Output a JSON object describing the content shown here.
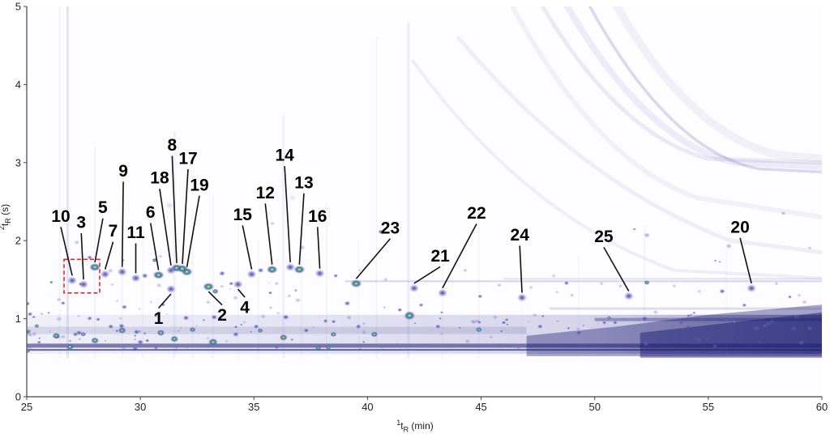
{
  "chart_data": {
    "type": "heatmap",
    "title": "",
    "xlabel": {
      "sup": "1",
      "base": "t",
      "sub": "R",
      "unit": " (min)"
    },
    "ylabel": {
      "sup": "2",
      "base": "t",
      "sub": "R",
      "unit": " (s)"
    },
    "xlim": [
      25,
      60
    ],
    "ylim": [
      0,
      5
    ],
    "xticks": [
      25,
      30,
      35,
      40,
      45,
      50,
      55,
      60
    ],
    "yticks": [
      0,
      1,
      2,
      3,
      4,
      5
    ],
    "grid": false,
    "colors": {
      "axis": "#444444",
      "tick_label": "#222222",
      "peak_label": "#000000",
      "roi": "#e8262a",
      "spot_hot_core": "#fbfb6a",
      "spot_hot_mid": "#58c24a",
      "spot_blue": "#2b4bb8",
      "spot_purple": "#7a72c0",
      "band": "#1d1d72",
      "bleed": "#8a80c8",
      "background": "#fdfdff"
    },
    "peaks": [
      {
        "n": "1",
        "t1": 31.35,
        "t2": 1.38,
        "lx": 30.8,
        "ly": 1.0,
        "hot": false
      },
      {
        "n": "2",
        "t1": 33.0,
        "t2": 1.41,
        "lx": 33.6,
        "ly": 1.04,
        "hot": true
      },
      {
        "n": "3",
        "t1": 27.5,
        "t2": 1.44,
        "lx": 27.4,
        "ly": 2.23,
        "hot": false
      },
      {
        "n": "4",
        "t1": 34.3,
        "t2": 1.44,
        "lx": 34.6,
        "ly": 1.14,
        "hot": false
      },
      {
        "n": "5",
        "t1": 28.0,
        "t2": 1.66,
        "lx": 28.35,
        "ly": 2.42,
        "hot": true
      },
      {
        "n": "6",
        "t1": 30.8,
        "t2": 1.56,
        "lx": 30.45,
        "ly": 2.36,
        "hot": true
      },
      {
        "n": "7",
        "t1": 28.45,
        "t2": 1.57,
        "lx": 28.8,
        "ly": 2.12,
        "hot": false
      },
      {
        "n": "8",
        "t1": 31.6,
        "t2": 1.65,
        "lx": 31.4,
        "ly": 3.22,
        "hot": true
      },
      {
        "n": "9",
        "t1": 29.2,
        "t2": 1.6,
        "lx": 29.25,
        "ly": 2.89,
        "hot": false
      },
      {
        "n": "10",
        "t1": 27.0,
        "t2": 1.49,
        "lx": 26.5,
        "ly": 2.31,
        "hot": false
      },
      {
        "n": "11",
        "t1": 29.8,
        "t2": 1.52,
        "lx": 29.8,
        "ly": 2.1,
        "hot": false
      },
      {
        "n": "12",
        "t1": 35.8,
        "t2": 1.63,
        "lx": 35.5,
        "ly": 2.61,
        "hot": true
      },
      {
        "n": "13",
        "t1": 37.0,
        "t2": 1.63,
        "lx": 37.2,
        "ly": 2.74,
        "hot": true
      },
      {
        "n": "14",
        "t1": 36.6,
        "t2": 1.66,
        "lx": 36.35,
        "ly": 3.09,
        "hot": false
      },
      {
        "n": "15",
        "t1": 34.9,
        "t2": 1.57,
        "lx": 34.5,
        "ly": 2.33,
        "hot": false
      },
      {
        "n": "16",
        "t1": 37.9,
        "t2": 1.58,
        "lx": 37.8,
        "ly": 2.31,
        "hot": false
      },
      {
        "n": "17",
        "t1": 31.85,
        "t2": 1.64,
        "lx": 32.1,
        "ly": 3.05,
        "hot": true
      },
      {
        "n": "18",
        "t1": 31.35,
        "t2": 1.62,
        "lx": 30.85,
        "ly": 2.8,
        "hot": false
      },
      {
        "n": "19",
        "t1": 32.05,
        "t2": 1.6,
        "lx": 32.6,
        "ly": 2.71,
        "hot": true
      },
      {
        "n": "20",
        "t1": 56.9,
        "t2": 1.39,
        "lx": 56.4,
        "ly": 2.17,
        "hot": false
      },
      {
        "n": "21",
        "t1": 42.05,
        "t2": 1.39,
        "lx": 43.2,
        "ly": 1.8,
        "hot": false
      },
      {
        "n": "22",
        "t1": 43.3,
        "t2": 1.33,
        "lx": 44.8,
        "ly": 2.35,
        "hot": false
      },
      {
        "n": "23",
        "t1": 39.5,
        "t2": 1.45,
        "lx": 41.0,
        "ly": 2.16,
        "hot": true
      },
      {
        "n": "24",
        "t1": 46.8,
        "t2": 1.27,
        "lx": 46.7,
        "ly": 2.07,
        "hot": false
      },
      {
        "n": "25",
        "t1": 51.5,
        "t2": 1.29,
        "lx": 50.4,
        "ly": 2.05,
        "hot": false
      }
    ],
    "roi_box": {
      "t1": 26.64,
      "t2": 28.21,
      "s1": 1.33,
      "s2": 1.76
    },
    "background": {
      "curves": [
        {
          "p": [
            47.5,
            5.1,
            51.0,
            3.35,
            55.0,
            3.05
          ],
          "ext": [
            60,
            3.0
          ],
          "w": 5,
          "o": 0.16
        },
        {
          "p": [
            48.6,
            5.1,
            52.2,
            3.25,
            56.2,
            3.0
          ],
          "ext": [
            60,
            2.95
          ],
          "w": 8,
          "o": 0.14
        },
        {
          "p": [
            49.6,
            5.1,
            53.2,
            3.15,
            57.2,
            2.92
          ],
          "ext": [
            60,
            2.88
          ],
          "w": 3.5,
          "o": 0.3
        },
        {
          "p": [
            50.8,
            5.1,
            54.0,
            3.4,
            58.0,
            3.1
          ],
          "ext": [
            60,
            3.05
          ],
          "w": 10,
          "o": 0.1
        },
        {
          "p": [
            46.2,
            5.1,
            50.0,
            3.0,
            54.5,
            2.55
          ],
          "ext": [
            60,
            2.3
          ],
          "w": 6,
          "o": 0.1
        },
        {
          "p": [
            44.0,
            4.6,
            49.5,
            2.7,
            56.0,
            2.0
          ],
          "ext": [
            60,
            1.85
          ],
          "w": 5,
          "o": 0.13
        },
        {
          "p": [
            42.0,
            4.3,
            47.0,
            2.3,
            53.5,
            1.62
          ],
          "ext": [
            60,
            1.52
          ],
          "w": 4,
          "o": 0.12
        }
      ],
      "hlines": [
        {
          "x0": 39,
          "x1": 60,
          "s": 1.48,
          "w": 2,
          "o": 0.4
        },
        {
          "x0": 46,
          "x1": 60,
          "s": 1.51,
          "w": 2,
          "o": 0.28
        },
        {
          "x0": 48,
          "x1": 60,
          "s": 1.13,
          "w": 3,
          "o": 0.3
        },
        {
          "x0": 50,
          "x1": 60,
          "s": 0.99,
          "w": 4,
          "o": 0.35
        },
        {
          "x0": 25,
          "x1": 60,
          "s": 0.655,
          "w": 5,
          "o": 0.55
        },
        {
          "x0": 25,
          "x1": 60,
          "s": 0.6,
          "w": 2,
          "o": 0.65
        },
        {
          "x0": 25,
          "x1": 47,
          "s": 0.85,
          "w": 9,
          "o": 0.12
        }
      ],
      "right_mass": [
        {
          "pts": [
            [
              47,
              0.52
            ],
            [
              60,
              0.52
            ],
            [
              60,
              1.18
            ],
            [
              55,
              1.05
            ],
            [
              51,
              0.9
            ],
            [
              47,
              0.78
            ]
          ],
          "o": 0.4
        },
        {
          "pts": [
            [
              52,
              0.5
            ],
            [
              60,
              0.5
            ],
            [
              60,
              1.08
            ],
            [
              56,
              0.95
            ],
            [
              52,
              0.82
            ]
          ],
          "o": 0.5
        }
      ],
      "vstreaks": [
        [
          26.8,
          3,
          0.2,
          5.0
        ],
        [
          26.45,
          2,
          0.08,
          5.0
        ],
        [
          28.0,
          2,
          0.08,
          3.2
        ],
        [
          29.2,
          2,
          0.08,
          2.6
        ],
        [
          30.1,
          2,
          0.06,
          2.2
        ],
        [
          31.5,
          3,
          0.1,
          3.4
        ],
        [
          32.3,
          2,
          0.07,
          2.4
        ],
        [
          33.2,
          2,
          0.08,
          2.6
        ],
        [
          34.3,
          2,
          0.06,
          2.2
        ],
        [
          35.2,
          2,
          0.06,
          2.0
        ],
        [
          36.3,
          3,
          0.1,
          3.6
        ],
        [
          37.1,
          2,
          0.07,
          2.3
        ],
        [
          38.2,
          2,
          0.07,
          2.5
        ],
        [
          39.6,
          2,
          0.06,
          2.0
        ],
        [
          40.4,
          2,
          0.09,
          4.6
        ],
        [
          41.8,
          3,
          0.14,
          4.8
        ],
        [
          43.3,
          2,
          0.06,
          1.9
        ],
        [
          44.9,
          2,
          0.07,
          2.2
        ],
        [
          46.8,
          2,
          0.05,
          1.8
        ],
        [
          49.3,
          2,
          0.05,
          1.8
        ],
        [
          52.2,
          2,
          0.08,
          2.2
        ],
        [
          55.8,
          2,
          0.06,
          1.9
        ]
      ],
      "bottom_blobs": [
        [
          26.3,
          0.78,
          5,
          "hot"
        ],
        [
          26.9,
          0.64,
          5,
          "hot"
        ],
        [
          27.3,
          0.82,
          4,
          "med"
        ],
        [
          28.0,
          0.72,
          5,
          "hot"
        ],
        [
          28.7,
          0.9,
          3.5,
          "med"
        ],
        [
          29.2,
          0.85,
          5,
          "hot"
        ],
        [
          30.0,
          0.7,
          4,
          "med"
        ],
        [
          30.9,
          0.82,
          5,
          "hot"
        ],
        [
          31.5,
          0.74,
          5,
          "hot"
        ],
        [
          32.3,
          0.86,
          4,
          "hot"
        ],
        [
          33.2,
          0.7,
          6,
          "hot"
        ],
        [
          33.25,
          1.02,
          4,
          "med"
        ],
        [
          33.3,
          1.35,
          4,
          "hot"
        ],
        [
          34.2,
          0.8,
          4,
          "med"
        ],
        [
          35.1,
          0.9,
          3.5,
          "med"
        ],
        [
          36.3,
          0.76,
          5,
          "hot"
        ],
        [
          36.4,
          1.02,
          4,
          "med"
        ],
        [
          37.3,
          0.85,
          3.5,
          "med"
        ],
        [
          38.5,
          0.8,
          4,
          "hot"
        ],
        [
          39.6,
          0.9,
          3.5,
          "med"
        ],
        [
          40.3,
          0.8,
          4.5,
          "hot"
        ],
        [
          41.85,
          1.04,
          7,
          "hot"
        ],
        [
          43.1,
          0.9,
          3.5,
          "med"
        ],
        [
          44.9,
          0.86,
          4,
          "hot"
        ],
        [
          46.0,
          0.95,
          3,
          "med"
        ],
        [
          47.6,
          0.9,
          3.5,
          "med"
        ],
        [
          49.3,
          0.82,
          3.5,
          "med"
        ],
        [
          50.9,
          0.95,
          3,
          "med"
        ],
        [
          52.2,
          1.0,
          4,
          "med"
        ],
        [
          53.8,
          0.95,
          3,
          "med"
        ],
        [
          55.8,
          1.0,
          3.5,
          "med"
        ],
        [
          29.3,
          1.15,
          3.5,
          "med"
        ],
        [
          26.6,
          1.2,
          3,
          "med"
        ],
        [
          31.0,
          1.18,
          3,
          "med"
        ],
        [
          30.2,
          1.55,
          4,
          "med"
        ],
        [
          33.6,
          1.58,
          4,
          "med"
        ],
        [
          34.0,
          1.45,
          3,
          "med"
        ],
        [
          35.3,
          1.62,
          4,
          "med"
        ],
        [
          36.0,
          1.45,
          3,
          "faint"
        ],
        [
          38.6,
          1.55,
          3,
          "med"
        ],
        [
          40.8,
          1.5,
          3,
          "faint"
        ]
      ],
      "upper_spots": [
        [
          31.3,
          2.45,
          6,
          0.2
        ],
        [
          36.7,
          2.55,
          5,
          0.16
        ],
        [
          52.3,
          2.07,
          4,
          0.55
        ],
        [
          55.9,
          1.93,
          4,
          0.45
        ],
        [
          58.3,
          2.35,
          3,
          0.5
        ],
        [
          44.3,
          1.62,
          3,
          0.4
        ],
        [
          48.2,
          1.55,
          3,
          0.35
        ],
        [
          50.3,
          1.45,
          3,
          0.4
        ],
        [
          53.5,
          1.42,
          3,
          0.35
        ],
        [
          45.8,
          1.43,
          3,
          0.4
        ],
        [
          47.2,
          1.4,
          3,
          0.35
        ],
        [
          49.0,
          1.3,
          3,
          0.4
        ],
        [
          54.6,
          1.35,
          3,
          0.35
        ],
        [
          58.0,
          1.45,
          3,
          0.4
        ],
        [
          59.0,
          1.3,
          3,
          0.35
        ]
      ],
      "noise": {
        "seed": 20,
        "count": 180
      }
    }
  }
}
